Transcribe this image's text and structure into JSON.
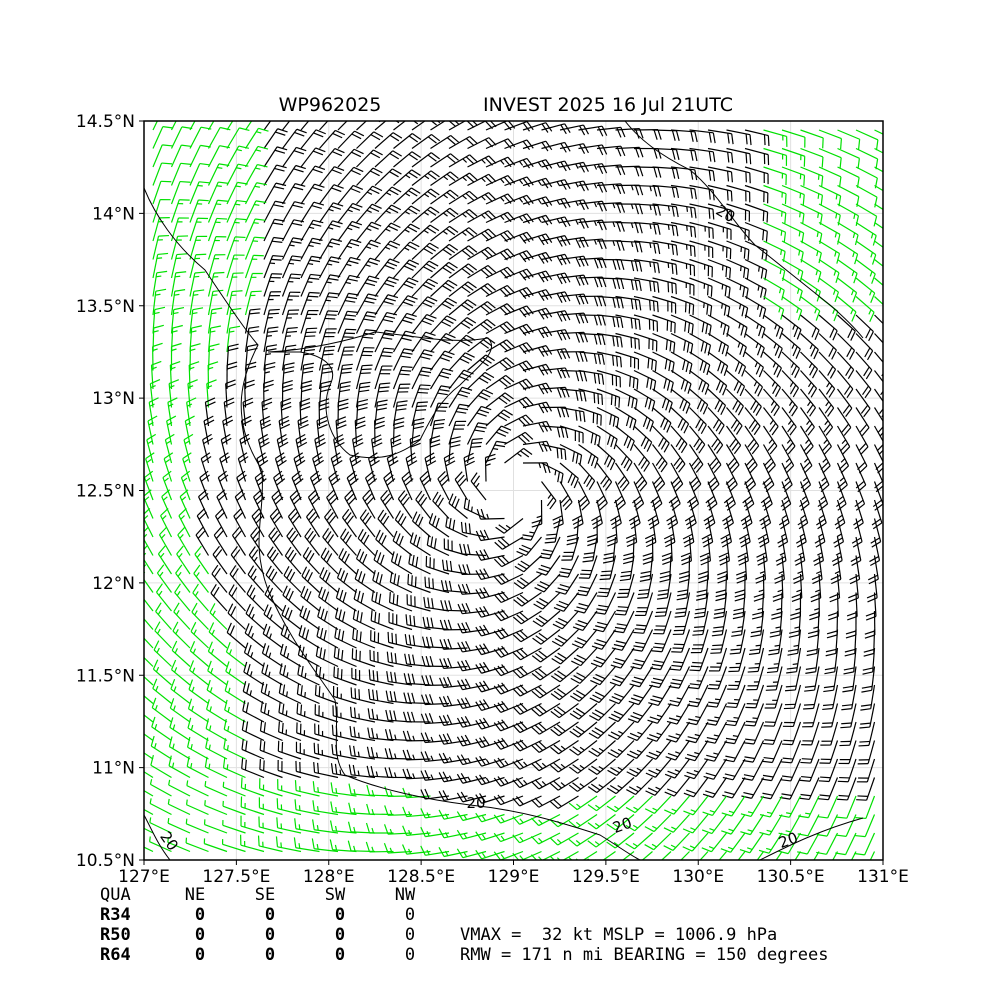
{
  "chart_data": {
    "type": "wind-barb-map",
    "title_left": "WP962025",
    "title_right": "INVEST 2025 16 Jul 21UTC",
    "x_ticks": [
      "127°E",
      "127.5°E",
      "128°E",
      "128.5°E",
      "129°E",
      "129.5°E",
      "130°E",
      "130.5°E",
      "131°E"
    ],
    "y_ticks": [
      "10.5°N",
      "11°N",
      "11.5°N",
      "12°N",
      "12.5°N",
      "13°N",
      "13.5°N",
      "14°N",
      "14.5°N"
    ],
    "lon_range": [
      127,
      131
    ],
    "lat_range": [
      10.5,
      14.5
    ],
    "storm_center": {
      "lon": 129.0,
      "lat": 12.5
    },
    "barb_colors": {
      "above_20kt": "#000000",
      "below_20kt": "#00e000"
    },
    "contour_level": "20",
    "contour_labels": [
      "20",
      "20",
      "20",
      "20",
      "20"
    ],
    "table": {
      "header": [
        "QUA",
        "NE",
        "SE",
        "SW",
        "NW"
      ],
      "rows": [
        {
          "label": "R34",
          "values": [
            "0",
            "0",
            "0",
            "0"
          ]
        },
        {
          "label": "R50",
          "values": [
            "0",
            "0",
            "0",
            "0"
          ]
        },
        {
          "label": "R64",
          "values": [
            "0",
            "0",
            "0",
            "0"
          ]
        }
      ]
    },
    "info_line1": "VMAX =  32 kt MSLP = 1006.9 hPa",
    "info_line2": "RMW = 171 n mi BEARING = 150 degrees"
  }
}
